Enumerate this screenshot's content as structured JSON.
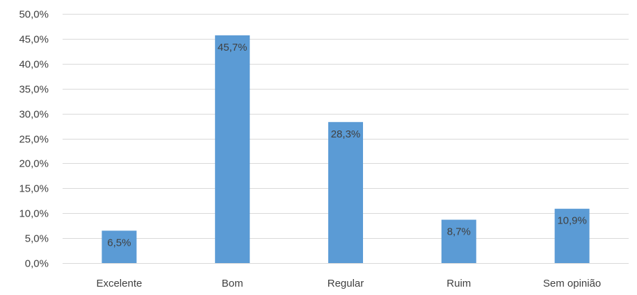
{
  "chart_data": {
    "type": "bar",
    "categories": [
      "Excelente",
      "Bom",
      "Regular",
      "Ruim",
      "Sem opinião"
    ],
    "values": [
      6.5,
      45.7,
      28.3,
      8.7,
      10.9
    ],
    "data_labels": [
      "6,5%",
      "45,7%",
      "28,3%",
      "8,7%",
      "10,9%"
    ],
    "ylim": [
      0,
      50
    ],
    "y_ticks": [
      0,
      5,
      10,
      15,
      20,
      25,
      30,
      35,
      40,
      45,
      50
    ],
    "y_tick_labels": [
      "0,0%",
      "5,0%",
      "10,0%",
      "15,0%",
      "20,0%",
      "25,0%",
      "30,0%",
      "35,0%",
      "40,0%",
      "45,0%",
      "50,0%"
    ],
    "grid": true,
    "bar_color": "#5B9BD5",
    "gridline_color": "#D9D9D9",
    "text_color": "#404040"
  }
}
